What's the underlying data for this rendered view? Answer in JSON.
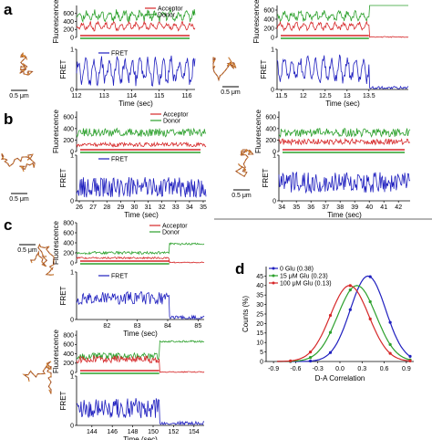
{
  "panel_letters": [
    "a",
    "b",
    "c",
    "d"
  ],
  "scale_label": "0.5 μm",
  "colors": {
    "acceptor": "#d62728",
    "donor": "#2ca02c",
    "fret": "#1f1fbf",
    "d0": "#1f1fbf",
    "d15": "#2ca02c",
    "d100": "#d62728",
    "traj_a": "#f0a030",
    "traj_b": "#a0522d"
  },
  "chart_data": [
    {
      "id": "a1",
      "type": "line",
      "ylabel_top": "Fluorescence",
      "ylabel_bottom": "FRET",
      "xlabel": "Time (sec)",
      "legend_top": [
        "Acceptor",
        "Donor"
      ],
      "legend_bottom": [
        "FRET"
      ],
      "xlim": [
        112,
        116.3
      ],
      "x_ticks": [
        112,
        113,
        114,
        115,
        116
      ],
      "fl_ylim": [
        0,
        800
      ],
      "fl_ticks": [
        0,
        200,
        400,
        600
      ],
      "fret_ylim": [
        0,
        1
      ],
      "fret_ticks": [
        0,
        1
      ],
      "donor_mean": 550,
      "acceptor_mean": 280,
      "fret_mean": 0.45,
      "cut": null,
      "seed": 11,
      "jitter": 0.35,
      "period": 0.28
    },
    {
      "id": "a2",
      "type": "line",
      "ylabel_top": "Fluorescence",
      "ylabel_bottom": "FRET",
      "xlabel": "Time (sec)",
      "legend_top": [],
      "legend_bottom": [],
      "xlim": [
        11.4,
        14.4
      ],
      "x_ticks": [
        11.5,
        12.0,
        12.5,
        13.0,
        13.5
      ],
      "fl_ylim": [
        0,
        700
      ],
      "fl_ticks": [
        0,
        200,
        400,
        600
      ],
      "fret_ylim": [
        0,
        1
      ],
      "fret_ticks": [
        0,
        1
      ],
      "donor_mean": 470,
      "acceptor_mean": 250,
      "fret_mean": 0.5,
      "cut": 13.5,
      "seed": 23,
      "jitter": 0.3,
      "period": 0.18
    },
    {
      "id": "b1",
      "type": "line",
      "ylabel_top": "Fluorescence",
      "ylabel_bottom": "FRET",
      "xlabel": "Time (sec)",
      "legend_top": [
        "Acceptor",
        "Donor"
      ],
      "legend_bottom": [
        "FRET"
      ],
      "xlim": [
        25.8,
        35.2
      ],
      "x_ticks": [
        26,
        27,
        28,
        29,
        30,
        31,
        32,
        33,
        34,
        35
      ],
      "fl_ylim": [
        0,
        700
      ],
      "fl_ticks": [
        0,
        200,
        400,
        600
      ],
      "fret_ylim": [
        0,
        1
      ],
      "fret_ticks": [
        0,
        1
      ],
      "donor_mean": 330,
      "acceptor_mean": 120,
      "fret_mean": 0.3,
      "cut": null,
      "seed": 37,
      "jitter": 0.5,
      "period": 0
    },
    {
      "id": "b2",
      "type": "line",
      "ylabel_top": "Fluorescence",
      "ylabel_bottom": "FRET",
      "xlabel": "Time (sec)",
      "legend_top": [],
      "legend_bottom": [],
      "xlim": [
        33.8,
        42.8
      ],
      "x_ticks": [
        34,
        35,
        36,
        37,
        38,
        39,
        40,
        41,
        42
      ],
      "fl_ylim": [
        0,
        700
      ],
      "fl_ticks": [
        0,
        200,
        400,
        600
      ],
      "fret_ylim": [
        0,
        1
      ],
      "fret_ticks": [
        0,
        1
      ],
      "donor_mean": 330,
      "acceptor_mean": 170,
      "fret_mean": 0.4,
      "cut": null,
      "seed": 41,
      "jitter": 0.5,
      "period": 0
    },
    {
      "id": "c1",
      "type": "line",
      "ylabel_top": "Fluorescence",
      "ylabel_bottom": "FRET",
      "xlabel": "Time (sec)",
      "legend_top": [
        "Acceptor",
        "Donor"
      ],
      "legend_bottom": [
        "FRET"
      ],
      "xlim": [
        81,
        85.2
      ],
      "x_ticks": [
        82,
        83,
        84,
        85
      ],
      "fl_ylim": [
        0,
        800
      ],
      "fl_ticks": [
        0,
        200,
        400,
        600,
        800
      ],
      "fret_ylim": [
        0,
        1
      ],
      "fret_ticks": [
        0,
        1
      ],
      "donor_mean": 200,
      "acceptor_mean": 100,
      "fret_mean": 0.45,
      "cut": 84.05,
      "seed": 53,
      "jitter": 0.3,
      "period": 0
    },
    {
      "id": "c2",
      "type": "line",
      "ylabel_top": "Fluorescence",
      "ylabel_bottom": "FRET",
      "xlabel": "Time (sec)",
      "legend_top": [],
      "legend_bottom": [],
      "xlim": [
        142.5,
        155
      ],
      "x_ticks": [
        144,
        146,
        148,
        150,
        152,
        154
      ],
      "fl_ylim": [
        0,
        900
      ],
      "fl_ticks": [
        0,
        200,
        400,
        600,
        800
      ],
      "fret_ylim": [
        0,
        1
      ],
      "fret_ticks": [
        0,
        1
      ],
      "donor_mean": 350,
      "acceptor_mean": 280,
      "fret_mean": 0.35,
      "cut": 150.6,
      "seed": 67,
      "jitter": 0.45,
      "period": 0
    },
    {
      "id": "d",
      "type": "line",
      "xlabel": "D-A Correlation",
      "ylabel": "Counts (%)",
      "xlim": [
        -1,
        1
      ],
      "ylim": [
        0,
        50
      ],
      "x_ticks": [
        -0.9,
        -0.6,
        -0.3,
        0.0,
        0.3,
        0.6,
        0.9
      ],
      "y_ticks": [
        0,
        5,
        10,
        15,
        20,
        25,
        30,
        35,
        40,
        45
      ],
      "series": [
        {
          "name": "0 Glu (0.38)",
          "color": "#1f1fbf",
          "peak": 0.38,
          "height": 45,
          "sigma": 0.24
        },
        {
          "name": "15 μM Glu (0.23)",
          "color": "#2ca02c",
          "peak": 0.23,
          "height": 40,
          "sigma": 0.26
        },
        {
          "name": "100 μM Glu (0.13)",
          "color": "#d62728",
          "peak": 0.13,
          "height": 40,
          "sigma": 0.26
        }
      ]
    }
  ]
}
